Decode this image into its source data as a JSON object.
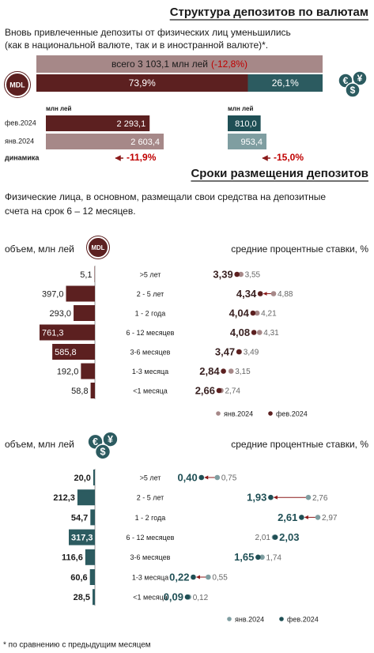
{
  "currency_structure": {
    "title": "Структура депозитов по валютам",
    "intro_lines": [
      "Вновь привлеченные депозиты от физических лиц уменьшились",
      "(как в национальной валюте, так и в иностранной валюте)*."
    ],
    "total_label": "всего 3 103,1 млн лей",
    "total_change": "(-12,8%)",
    "currency_badge": "MDL",
    "fx_symbols": [
      "€",
      "$",
      "¥"
    ],
    "shares": {
      "values": [
        73.9,
        26.1
      ],
      "value_labels": [
        "73,9%",
        "26,1%"
      ],
      "colors": [
        "#5c2020",
        "#2c5b60"
      ]
    },
    "unit": "млн лей",
    "row_labels": [
      "фев.2024",
      "янв.2024",
      "динамика"
    ],
    "mdl": {
      "values": [
        2293.1,
        2603.4
      ],
      "value_labels": [
        "2 293,1",
        "2 603,4"
      ],
      "colors": [
        "#5c2020",
        "#a68888"
      ],
      "change": "-11,9%"
    },
    "fx": {
      "values": [
        810.0,
        953.4
      ],
      "value_labels": [
        "810,0",
        "953,4"
      ],
      "colors": [
        "#1f4f55",
        "#7f9ea1"
      ],
      "change": "-15,0%"
    }
  },
  "term_structure": {
    "title": "Сроки размещения депозитов",
    "intro_lines": [
      "Физические лица, в основном, размещали свои средства на депозитные",
      "счета на срок 6 – 12 месяцев."
    ],
    "categories": [
      ">5 лет",
      "2 - 5 лет",
      "1 - 2 года",
      "6 - 12 месяцев",
      "3-6 месяцев",
      "1-3 месяца",
      "<1 месяца"
    ],
    "panels": [
      {
        "volume_label": "объем, млн лей",
        "rate_label": "средние процентные ставки, %",
        "volume": {
          "color": "#5c2020",
          "values": [
            5.1,
            397.0,
            293.0,
            761.3,
            585.8,
            192.0,
            58.8
          ],
          "value_labels": [
            "5,1",
            "397,0",
            "293,0",
            "761,3",
            "585,8",
            "192,0",
            "58,8"
          ]
        },
        "rates": [
          {
            "name": "янв.2024",
            "color": "#a68888",
            "values": [
              3.55,
              4.88,
              4.21,
              4.31,
              3.49,
              3.15,
              2.74
            ],
            "value_labels": [
              "3,55",
              "4,88",
              "4,21",
              "4,31",
              "3,49",
              "3,15",
              "2,74"
            ]
          },
          {
            "name": "фев.2024",
            "color": "#5c2020",
            "values": [
              3.39,
              4.34,
              4.04,
              4.08,
              3.47,
              2.84,
              2.66
            ],
            "value_labels": [
              "3,39",
              "4,34",
              "4,04",
              "4,08",
              "3,47",
              "2,84",
              "2,66"
            ]
          }
        ]
      },
      {
        "volume_label": "объем, млн лей",
        "rate_label": "средние процентные ставки, %",
        "volume": {
          "color": "#2c5b60",
          "values": [
            20.0,
            212.3,
            54.7,
            317.3,
            116.6,
            60.6,
            28.5
          ],
          "value_labels": [
            "20,0",
            "212,3",
            "54,7",
            "317,3",
            "116,6",
            "60,6",
            "28,5"
          ]
        },
        "rates": [
          {
            "name": "янв.2024",
            "color": "#7f9ea1",
            "values": [
              0.75,
              2.76,
              2.97,
              2.01,
              1.74,
              0.55,
              0.12
            ],
            "value_labels": [
              "0,75",
              "2,76",
              "2,97",
              "2,01",
              "1,74",
              "0,55",
              "0,12"
            ]
          },
          {
            "name": "фев.2024",
            "color": "#1f4f55",
            "values": [
              0.4,
              1.93,
              2.61,
              2.03,
              1.65,
              0.22,
              0.09
            ],
            "value_labels": [
              "0,40",
              "1,93",
              "2,61",
              "2,03",
              "1,65",
              "0,22",
              "0,09"
            ]
          }
        ]
      }
    ]
  },
  "footnote": "* по сравнению с предыдущим месяцем"
}
